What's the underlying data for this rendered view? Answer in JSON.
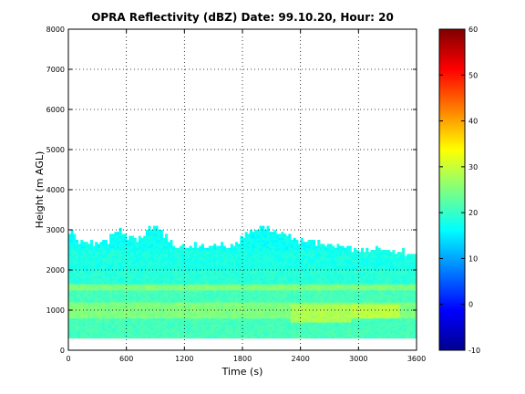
{
  "chart_data": {
    "type": "heatmap",
    "title": "OPRA Reflectivity (dBZ)  Date: 99.10.20, Hour: 20",
    "xlabel": "Time (s)",
    "ylabel": "Height (m AGL)",
    "xlim": [
      0,
      3600
    ],
    "ylim": [
      0,
      8000
    ],
    "xticks": [
      "0",
      "600",
      "1200",
      "1800",
      "2400",
      "3000",
      "3600"
    ],
    "yticks": [
      "0",
      "1000",
      "2000",
      "3000",
      "4000",
      "5000",
      "6000",
      "7000",
      "8000"
    ],
    "grid": true,
    "colorbar": {
      "colormap": "jet",
      "range": [
        -10,
        60
      ],
      "ticks": [
        "-10",
        "0",
        "10",
        "20",
        "30",
        "40",
        "50",
        "60"
      ]
    },
    "echo_layers": [
      {
        "height_range_m": [
          300,
          800
        ],
        "reflectivity_dBZ": 21
      },
      {
        "height_range_m": [
          800,
          1200
        ],
        "reflectivity_dBZ": 25
      },
      {
        "height_range_m": [
          1200,
          1500
        ],
        "reflectivity_dBZ": 21
      },
      {
        "height_range_m": [
          1500,
          1650
        ],
        "reflectivity_dBZ": 25
      },
      {
        "height_range_m": [
          1650,
          2000
        ],
        "reflectivity_dBZ": 19
      },
      {
        "height_range_m": [
          2000,
          2500
        ],
        "reflectivity_dBZ": 18
      },
      {
        "height_range_m": [
          2500,
          3100
        ],
        "reflectivity_dBZ": 17
      }
    ],
    "echo_top_m": [
      {
        "time_s": 0,
        "height_m": 3000
      },
      {
        "time_s": 150,
        "height_m": 2600
      },
      {
        "time_s": 400,
        "height_m": 2700
      },
      {
        "time_s": 500,
        "height_m": 3000
      },
      {
        "time_s": 700,
        "height_m": 2700
      },
      {
        "time_s": 900,
        "height_m": 3100
      },
      {
        "time_s": 1100,
        "height_m": 2600
      },
      {
        "time_s": 1700,
        "height_m": 2600
      },
      {
        "time_s": 2000,
        "height_m": 3100
      },
      {
        "time_s": 2400,
        "height_m": 2700
      },
      {
        "time_s": 3000,
        "height_m": 2500
      },
      {
        "time_s": 3300,
        "height_m": 2500
      },
      {
        "time_s": 3600,
        "height_m": 2400
      }
    ],
    "enhanced_regions": [
      {
        "time_range_s": [
          2300,
          2900
        ],
        "height_range_m": [
          700,
          1100
        ],
        "reflectivity_dBZ": 28
      },
      {
        "time_range_s": [
          2900,
          3400
        ],
        "height_range_m": [
          800,
          1100
        ],
        "reflectivity_dBZ": 29
      }
    ]
  }
}
